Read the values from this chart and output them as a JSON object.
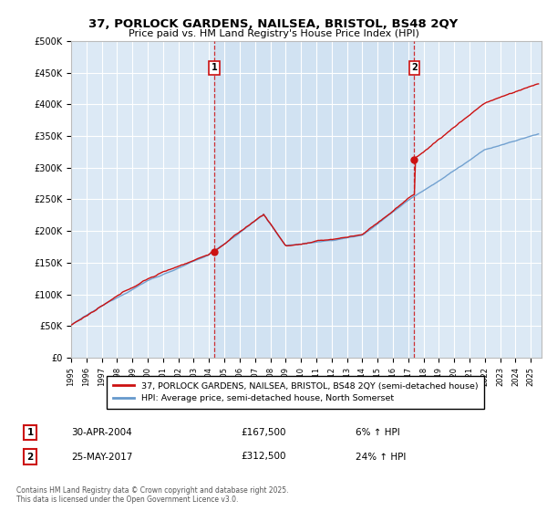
{
  "title_line1": "37, PORLOCK GARDENS, NAILSEA, BRISTOL, BS48 2QY",
  "title_line2": "Price paid vs. HM Land Registry's House Price Index (HPI)",
  "ylim": [
    0,
    500000
  ],
  "yticks": [
    0,
    50000,
    100000,
    150000,
    200000,
    250000,
    300000,
    350000,
    400000,
    450000,
    500000
  ],
  "ytick_labels": [
    "£0",
    "£50K",
    "£100K",
    "£150K",
    "£200K",
    "£250K",
    "£300K",
    "£350K",
    "£400K",
    "£450K",
    "£500K"
  ],
  "plot_bg_color": "#dce9f5",
  "grid_color": "#ffffff",
  "line1_color": "#cc1111",
  "line2_color": "#6699cc",
  "transaction1_year": 2004.33,
  "transaction1_price": 167500,
  "transaction2_year": 2017.4,
  "transaction2_price": 312500,
  "vline_color": "#cc1111",
  "fill_color": "#c8ddf0",
  "legend_label1": "37, PORLOCK GARDENS, NAILSEA, BRISTOL, BS48 2QY (semi-detached house)",
  "legend_label2": "HPI: Average price, semi-detached house, North Somerset",
  "footnote": "Contains HM Land Registry data © Crown copyright and database right 2025.\nThis data is licensed under the Open Government Licence v3.0.",
  "xtick_start": 1995,
  "xtick_end": 2025
}
